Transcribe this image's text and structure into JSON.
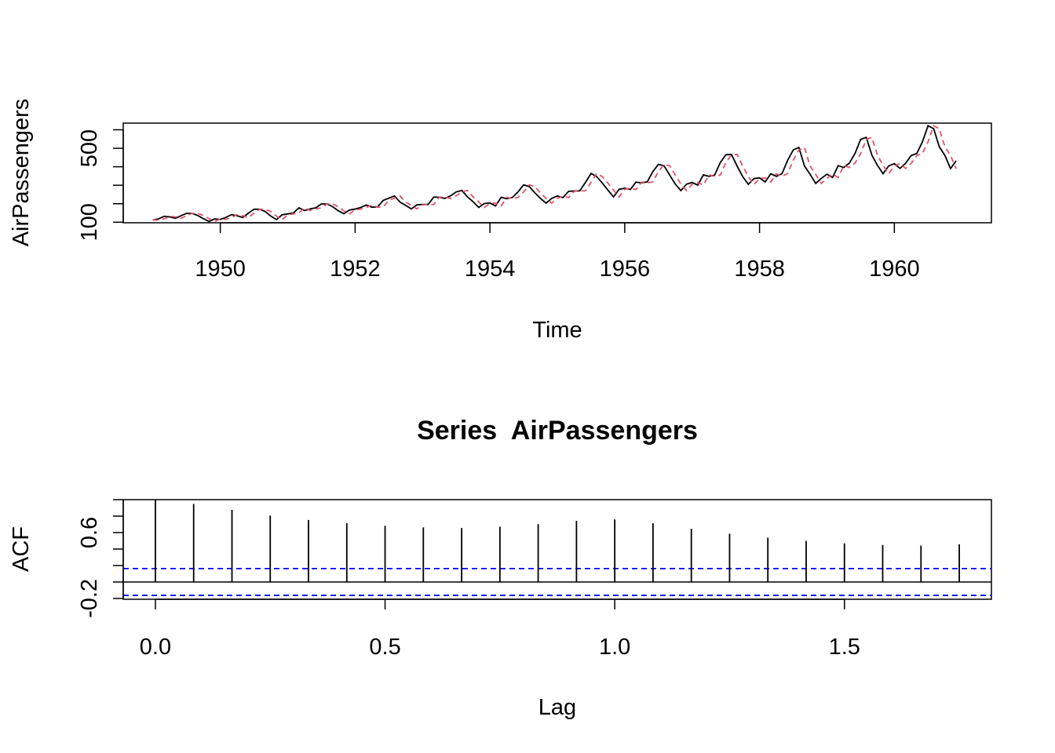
{
  "chart_data": [
    {
      "type": "line",
      "xlabel": "Time",
      "ylabel": "AirPassengers",
      "xlim": [
        1948.56,
        1961.44
      ],
      "ylim": [
        97,
        636
      ],
      "x_tick_values": [
        1950,
        1952,
        1954,
        1956,
        1958,
        1960
      ],
      "x_tick_labels": [
        "1950",
        "1952",
        "1954",
        "1956",
        "1958",
        "1960"
      ],
      "y_tick_values": [
        100,
        200,
        300,
        400,
        500,
        600
      ],
      "y_tick_labels": [
        "100",
        "",
        "",
        "",
        "500",
        ""
      ],
      "x_start": 1949,
      "x_step": 0.0833333,
      "series": [
        {
          "style": "solid",
          "color": "#000000",
          "values": [
            112,
            118,
            132,
            129,
            121,
            135,
            148,
            148,
            136,
            119,
            104,
            118,
            115,
            126,
            141,
            135,
            125,
            149,
            170,
            170,
            158,
            133,
            114,
            140,
            145,
            150,
            178,
            163,
            172,
            178,
            199,
            199,
            184,
            162,
            146,
            166,
            171,
            180,
            193,
            181,
            183,
            218,
            230,
            242,
            209,
            191,
            172,
            194,
            196,
            196,
            236,
            235,
            229,
            243,
            264,
            272,
            237,
            211,
            180,
            201,
            204,
            188,
            235,
            227,
            234,
            264,
            302,
            293,
            259,
            229,
            203,
            229,
            242,
            233,
            267,
            269,
            270,
            315,
            364,
            347,
            312,
            274,
            237,
            278,
            284,
            277,
            317,
            313,
            318,
            374,
            413,
            405,
            355,
            306,
            271,
            306,
            315,
            301,
            356,
            348,
            355,
            422,
            465,
            467,
            404,
            347,
            305,
            336,
            340,
            318,
            362,
            348,
            363,
            435,
            491,
            505,
            404,
            359,
            310,
            337,
            360,
            342,
            406,
            396,
            420,
            472,
            548,
            559,
            463,
            407,
            362,
            405,
            417,
            391,
            419,
            461,
            472,
            535,
            622,
            606,
            508,
            461,
            390,
            432
          ]
        },
        {
          "style": "dashed",
          "color": "#DF536B",
          "values": [
            112,
            112,
            118,
            132,
            129,
            121,
            135,
            148,
            148,
            136,
            119,
            104,
            118,
            115,
            126,
            141,
            135,
            125,
            149,
            170,
            170,
            158,
            133,
            114,
            140,
            145,
            150,
            178,
            163,
            172,
            178,
            199,
            199,
            184,
            162,
            146,
            166,
            171,
            180,
            193,
            181,
            183,
            218,
            230,
            242,
            209,
            191,
            172,
            194,
            196,
            196,
            236,
            235,
            229,
            243,
            264,
            272,
            237,
            211,
            180,
            201,
            204,
            188,
            235,
            227,
            234,
            264,
            302,
            293,
            259,
            229,
            203,
            229,
            242,
            233,
            267,
            269,
            270,
            315,
            364,
            347,
            312,
            274,
            237,
            278,
            284,
            277,
            317,
            313,
            318,
            374,
            413,
            405,
            355,
            306,
            271,
            306,
            315,
            301,
            356,
            348,
            355,
            422,
            465,
            467,
            404,
            347,
            305,
            336,
            340,
            318,
            362,
            348,
            363,
            435,
            491,
            505,
            404,
            359,
            310,
            337,
            360,
            342,
            406,
            396,
            420,
            472,
            548,
            559,
            463,
            407,
            362,
            405,
            417,
            391,
            419,
            461,
            472,
            535,
            622,
            606,
            508,
            461,
            390
          ]
        }
      ]
    },
    {
      "type": "bar",
      "title": "Series  AirPassengers",
      "xlabel": "Lag",
      "ylabel": "ACF",
      "xlim": [
        -0.07,
        1.82
      ],
      "ylim": [
        -0.21,
        1.0
      ],
      "x_tick_values": [
        0.0,
        0.5,
        1.0,
        1.5
      ],
      "x_tick_labels": [
        "0.0",
        "0.5",
        "1.0",
        "1.5"
      ],
      "y_tick_values": [
        -0.2,
        0.0,
        0.2,
        0.4,
        0.6,
        0.8,
        1.0
      ],
      "y_tick_labels": [
        "-0.2",
        "",
        "",
        "",
        "0.6",
        "",
        ""
      ],
      "lags": [
        0.0,
        0.0833,
        0.1667,
        0.25,
        0.3333,
        0.4167,
        0.5,
        0.5833,
        0.6667,
        0.75,
        0.8333,
        0.9167,
        1.0,
        1.0833,
        1.1667,
        1.25,
        1.3333,
        1.4167,
        1.5,
        1.5833,
        1.6667,
        1.75
      ],
      "values": [
        1.0,
        0.948,
        0.876,
        0.807,
        0.753,
        0.714,
        0.682,
        0.663,
        0.656,
        0.671,
        0.703,
        0.743,
        0.76,
        0.713,
        0.646,
        0.586,
        0.538,
        0.499,
        0.469,
        0.45,
        0.442,
        0.457
      ],
      "ci": 0.163,
      "ci_color": "#0000FF"
    }
  ]
}
